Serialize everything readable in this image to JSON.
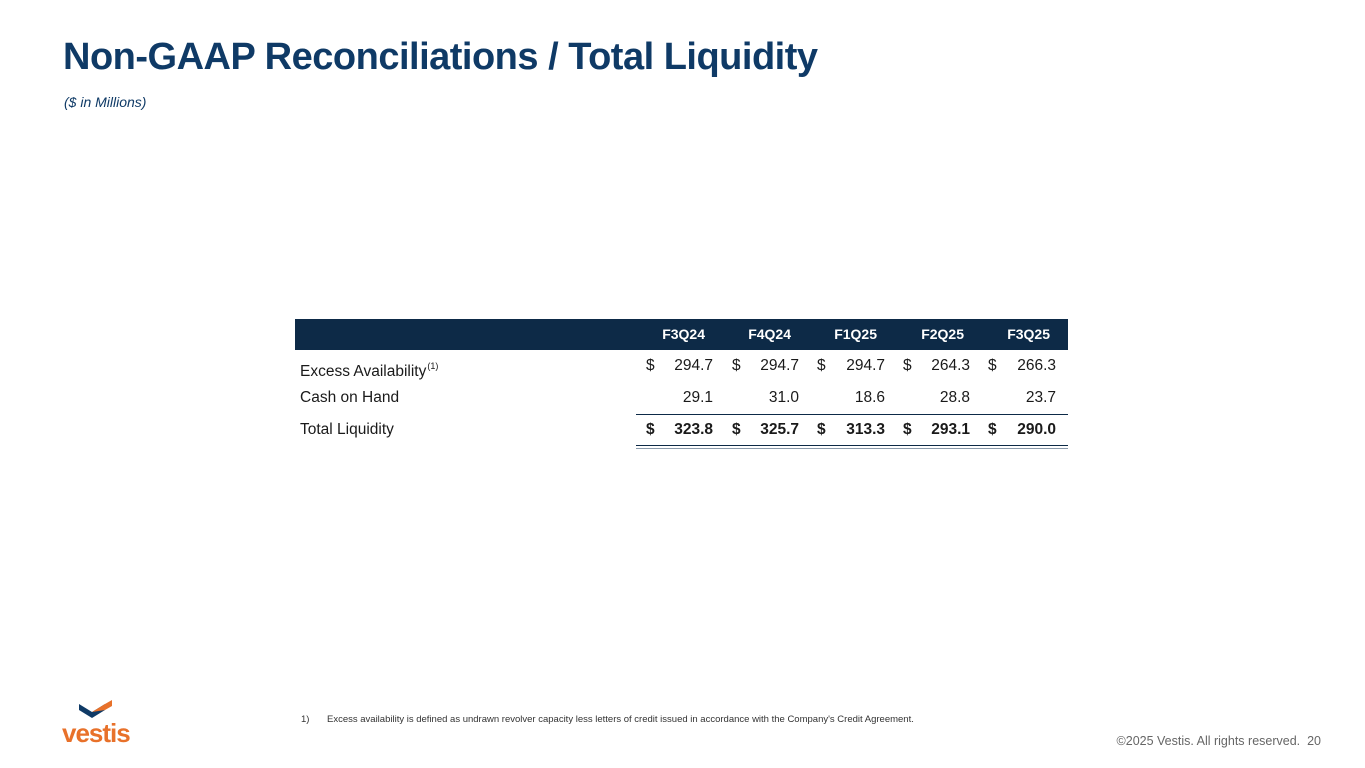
{
  "header": {
    "title": "Non-GAAP Reconciliations / Total Liquidity",
    "subtitle": "($ in Millions)"
  },
  "table": {
    "columns": [
      "F3Q24",
      "F4Q24",
      "F1Q25",
      "F2Q25",
      "F3Q25"
    ],
    "rows": [
      {
        "label": "Excess Availability",
        "footnote_ref": "(1)",
        "currency": [
          "$",
          "$",
          "$",
          "$",
          "$"
        ],
        "values": [
          "294.7",
          "294.7",
          "294.7",
          "264.3",
          "266.3"
        ]
      },
      {
        "label": "Cash on Hand",
        "currency": [
          "",
          "",
          "",
          "",
          ""
        ],
        "values": [
          "29.1",
          "31.0",
          "18.6",
          "28.8",
          "23.7"
        ]
      },
      {
        "label": "Total Liquidity",
        "currency": [
          "$",
          "$",
          "$",
          "$",
          "$"
        ],
        "values": [
          "323.8",
          "325.7",
          "313.3",
          "293.1",
          "290.0"
        ]
      }
    ]
  },
  "footnotes": [
    {
      "num": "1)",
      "text": "Excess availability is defined as undrawn revolver capacity less letters of credit issued in accordance with the Company's Credit Agreement."
    }
  ],
  "footer": {
    "copyright": "©2025 Vestis. All rights reserved.",
    "page_number": "20"
  },
  "logo": {
    "text": "vestis",
    "icon": "vestis-chevron-logo-icon",
    "colors": {
      "orange": "#e8712a",
      "navy": "#0f3a66"
    }
  },
  "colors": {
    "title": "#0f3a66",
    "table_header_bg": "#0d2a47"
  }
}
